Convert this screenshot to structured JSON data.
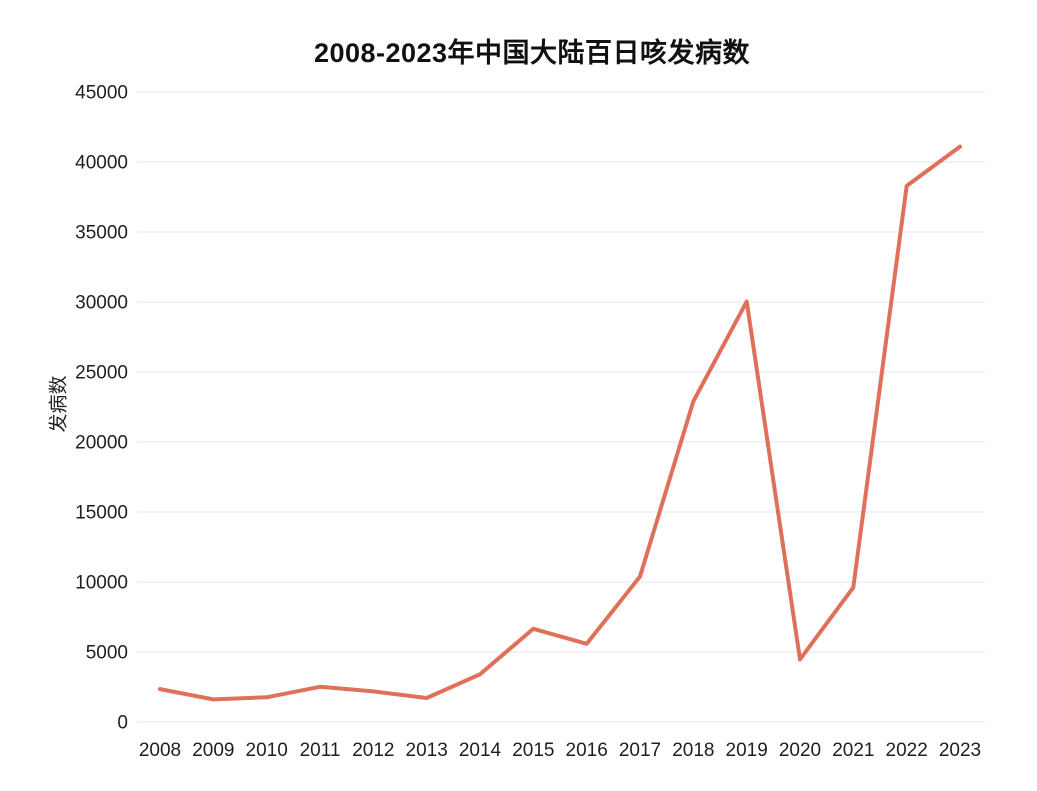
{
  "chart_data": {
    "type": "line",
    "title": "2008-2023年中国大陆百日咳发病数",
    "xlabel": "",
    "ylabel": "发病数",
    "categories": [
      "2008",
      "2009",
      "2010",
      "2011",
      "2012",
      "2013",
      "2014",
      "2015",
      "2016",
      "2017",
      "2018",
      "2019",
      "2020",
      "2021",
      "2022",
      "2023"
    ],
    "series": [
      {
        "name": "发病数",
        "values": [
          2352,
          1616,
          1764,
          2517,
          2183,
          1712,
          3408,
          6658,
          5584,
          10390,
          22900,
          30027,
          4475,
          9611,
          38295,
          41100
        ]
      }
    ],
    "ylim": [
      0,
      45000
    ],
    "ytick_step": 5000,
    "ytick_labels": [
      "0",
      "5000",
      "10000",
      "15000",
      "20000",
      "25000",
      "30000",
      "35000",
      "40000",
      "45000"
    ],
    "grid": "horizontal",
    "legend": "none",
    "line_color": "#E0705A",
    "grid_color": "#ECECEC",
    "tick_text_color": "#1F1F1F",
    "background": "#FFFFFF"
  }
}
